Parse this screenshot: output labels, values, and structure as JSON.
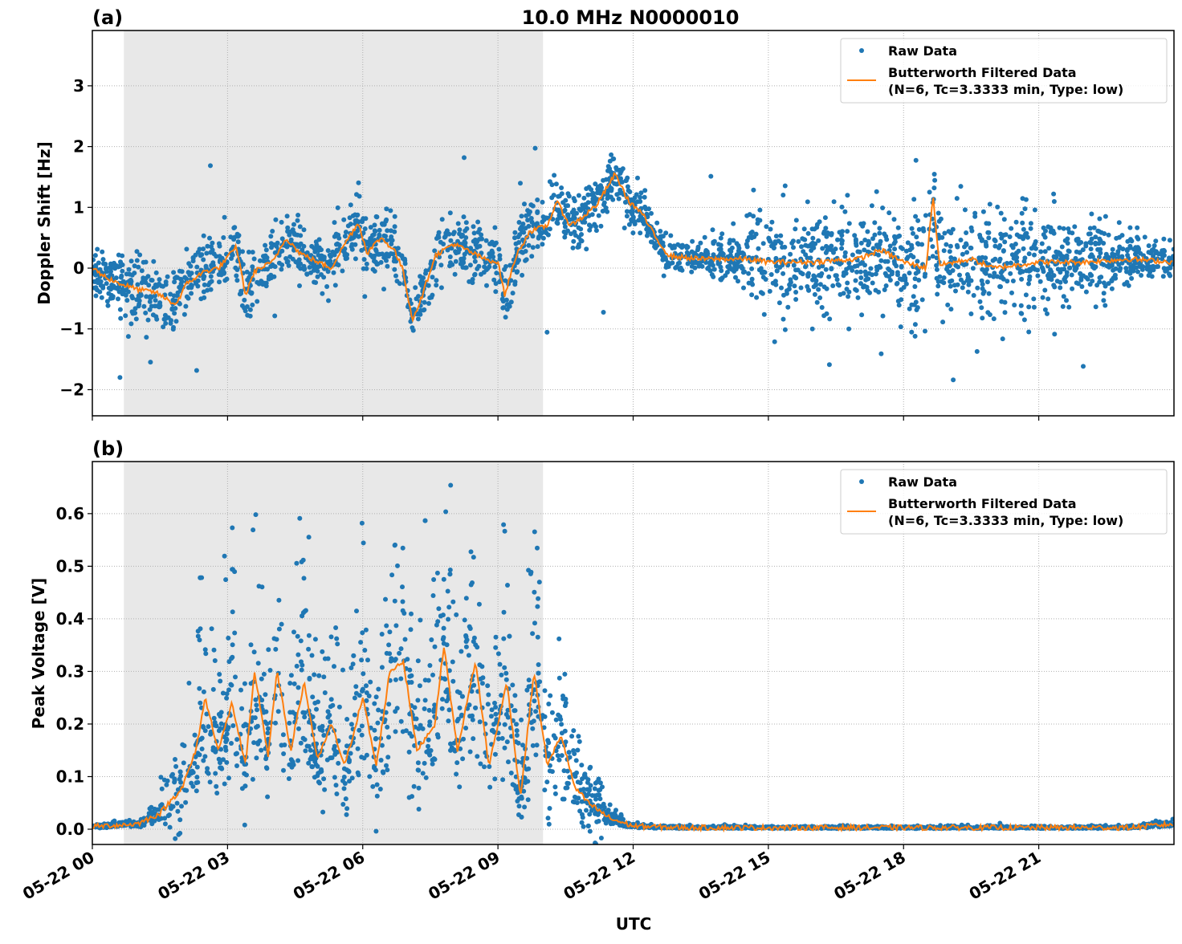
{
  "chart_data": [
    {
      "type": "scatter+line",
      "panel_label": "(a)",
      "title": "10.0 MHz N0000010",
      "xlabel": "",
      "ylabel": "Doppler Shift [Hz]",
      "xlim_hours": [
        0,
        24
      ],
      "ylim": [
        -2.43,
        3.91
      ],
      "yticks": [
        -2,
        -1,
        0,
        1,
        2,
        3
      ],
      "ytick_labels": [
        "−2",
        "−1",
        "0",
        "1",
        "2",
        "3"
      ],
      "grid": true,
      "legend_placement": "top-right",
      "shaded_span_hours": [
        0.7,
        10.0
      ],
      "colors": {
        "raw": "#1f77b4",
        "filtered": "#ff7f0e",
        "shade": "#e8e8e8"
      },
      "legend": [
        "Raw Data",
        "Butterworth Filtered Data",
        "(N=6, Tc=3.3333 min, Type: low)"
      ],
      "filtered": [
        [
          0,
          0
        ],
        [
          0.3,
          -0.15
        ],
        [
          0.6,
          -0.25
        ],
        [
          1.0,
          -0.35
        ],
        [
          1.4,
          -0.4
        ],
        [
          1.85,
          -0.6
        ],
        [
          2.1,
          -0.25
        ],
        [
          2.5,
          -0.05
        ],
        [
          2.8,
          0.0
        ],
        [
          3.2,
          0.35
        ],
        [
          3.4,
          -0.45
        ],
        [
          3.6,
          -0.05
        ],
        [
          4.0,
          0.1
        ],
        [
          4.3,
          0.5
        ],
        [
          4.6,
          0.25
        ],
        [
          5.0,
          0.1
        ],
        [
          5.3,
          0.0
        ],
        [
          5.6,
          0.4
        ],
        [
          5.9,
          0.75
        ],
        [
          6.1,
          0.25
        ],
        [
          6.4,
          0.5
        ],
        [
          6.7,
          0.3
        ],
        [
          6.9,
          -0.05
        ],
        [
          7.1,
          -0.85
        ],
        [
          7.3,
          -0.5
        ],
        [
          7.6,
          0.2
        ],
        [
          8.0,
          0.4
        ],
        [
          8.3,
          0.3
        ],
        [
          8.7,
          0.15
        ],
        [
          9.0,
          0.1
        ],
        [
          9.15,
          -0.45
        ],
        [
          9.4,
          0.2
        ],
        [
          9.7,
          0.6
        ],
        [
          10.1,
          0.7
        ],
        [
          10.3,
          1.1
        ],
        [
          10.6,
          0.7
        ],
        [
          10.9,
          0.85
        ],
        [
          11.2,
          1.05
        ],
        [
          11.4,
          1.3
        ],
        [
          11.6,
          1.55
        ],
        [
          11.9,
          1.1
        ],
        [
          12.2,
          0.9
        ],
        [
          12.5,
          0.5
        ],
        [
          12.8,
          0.2
        ],
        [
          13.5,
          0.15
        ],
        [
          14.5,
          0.15
        ],
        [
          15,
          0.1
        ],
        [
          16,
          0.1
        ],
        [
          17,
          0.15
        ],
        [
          17.5,
          0.3
        ],
        [
          18,
          0.1
        ],
        [
          18.5,
          0.0
        ],
        [
          18.65,
          1.2
        ],
        [
          18.8,
          0.05
        ],
        [
          19.5,
          0.15
        ],
        [
          20,
          0.0
        ],
        [
          21,
          0.1
        ],
        [
          22,
          0.1
        ],
        [
          23,
          0.15
        ],
        [
          24,
          0.1
        ]
      ],
      "raw_spread": [
        [
          0,
          0.45
        ],
        [
          10,
          0.45
        ],
        [
          12.5,
          0.4
        ],
        [
          13,
          0.25
        ],
        [
          14.3,
          0.3
        ],
        [
          14.8,
          0.7
        ],
        [
          17,
          0.8
        ],
        [
          20,
          0.9
        ],
        [
          22,
          0.6
        ],
        [
          23.5,
          0.3
        ],
        [
          24,
          0.3
        ]
      ]
    },
    {
      "type": "scatter+line",
      "panel_label": "(b)",
      "xlabel": "UTC",
      "ylabel": "Peak Voltage [V]",
      "xlim_hours": [
        0,
        24
      ],
      "ylim": [
        -0.029,
        0.699
      ],
      "yticks": [
        0.0,
        0.1,
        0.2,
        0.3,
        0.4,
        0.5,
        0.6
      ],
      "ytick_labels": [
        "0.0",
        "0.1",
        "0.2",
        "0.3",
        "0.4",
        "0.5",
        "0.6"
      ],
      "xticks_hours": [
        0,
        3,
        6,
        9,
        12,
        15,
        18,
        21
      ],
      "xtick_labels": [
        "05-22 00",
        "05-22 03",
        "05-22 06",
        "05-22 09",
        "05-22 12",
        "05-22 15",
        "05-22 18",
        "05-22 21"
      ],
      "grid": true,
      "legend_placement": "top-right",
      "shaded_span_hours": [
        0.7,
        10.0
      ],
      "colors": {
        "raw": "#1f77b4",
        "filtered": "#ff7f0e",
        "shade": "#e8e8e8"
      },
      "legend": [
        "Raw Data",
        "Butterworth Filtered Data",
        "(N=6, Tc=3.3333 min, Type: low)"
      ],
      "filtered": [
        [
          0,
          0.005
        ],
        [
          1,
          0.01
        ],
        [
          1.5,
          0.03
        ],
        [
          2,
          0.08
        ],
        [
          2.3,
          0.15
        ],
        [
          2.5,
          0.25
        ],
        [
          2.8,
          0.15
        ],
        [
          3.1,
          0.24
        ],
        [
          3.4,
          0.12
        ],
        [
          3.6,
          0.3
        ],
        [
          3.9,
          0.14
        ],
        [
          4.1,
          0.3
        ],
        [
          4.4,
          0.15
        ],
        [
          4.7,
          0.28
        ],
        [
          5.0,
          0.13
        ],
        [
          5.3,
          0.2
        ],
        [
          5.6,
          0.12
        ],
        [
          6.0,
          0.25
        ],
        [
          6.3,
          0.12
        ],
        [
          6.6,
          0.3
        ],
        [
          6.9,
          0.32
        ],
        [
          7.2,
          0.15
        ],
        [
          7.6,
          0.2
        ],
        [
          7.8,
          0.35
        ],
        [
          8.1,
          0.15
        ],
        [
          8.5,
          0.32
        ],
        [
          8.8,
          0.12
        ],
        [
          9.2,
          0.28
        ],
        [
          9.5,
          0.06
        ],
        [
          9.8,
          0.3
        ],
        [
          10.1,
          0.12
        ],
        [
          10.4,
          0.18
        ],
        [
          10.7,
          0.08
        ],
        [
          11.0,
          0.05
        ],
        [
          11.5,
          0.02
        ],
        [
          12,
          0.006
        ],
        [
          13,
          0.003
        ],
        [
          18,
          0.003
        ],
        [
          23,
          0.003
        ],
        [
          24,
          0.01
        ]
      ]
    }
  ]
}
